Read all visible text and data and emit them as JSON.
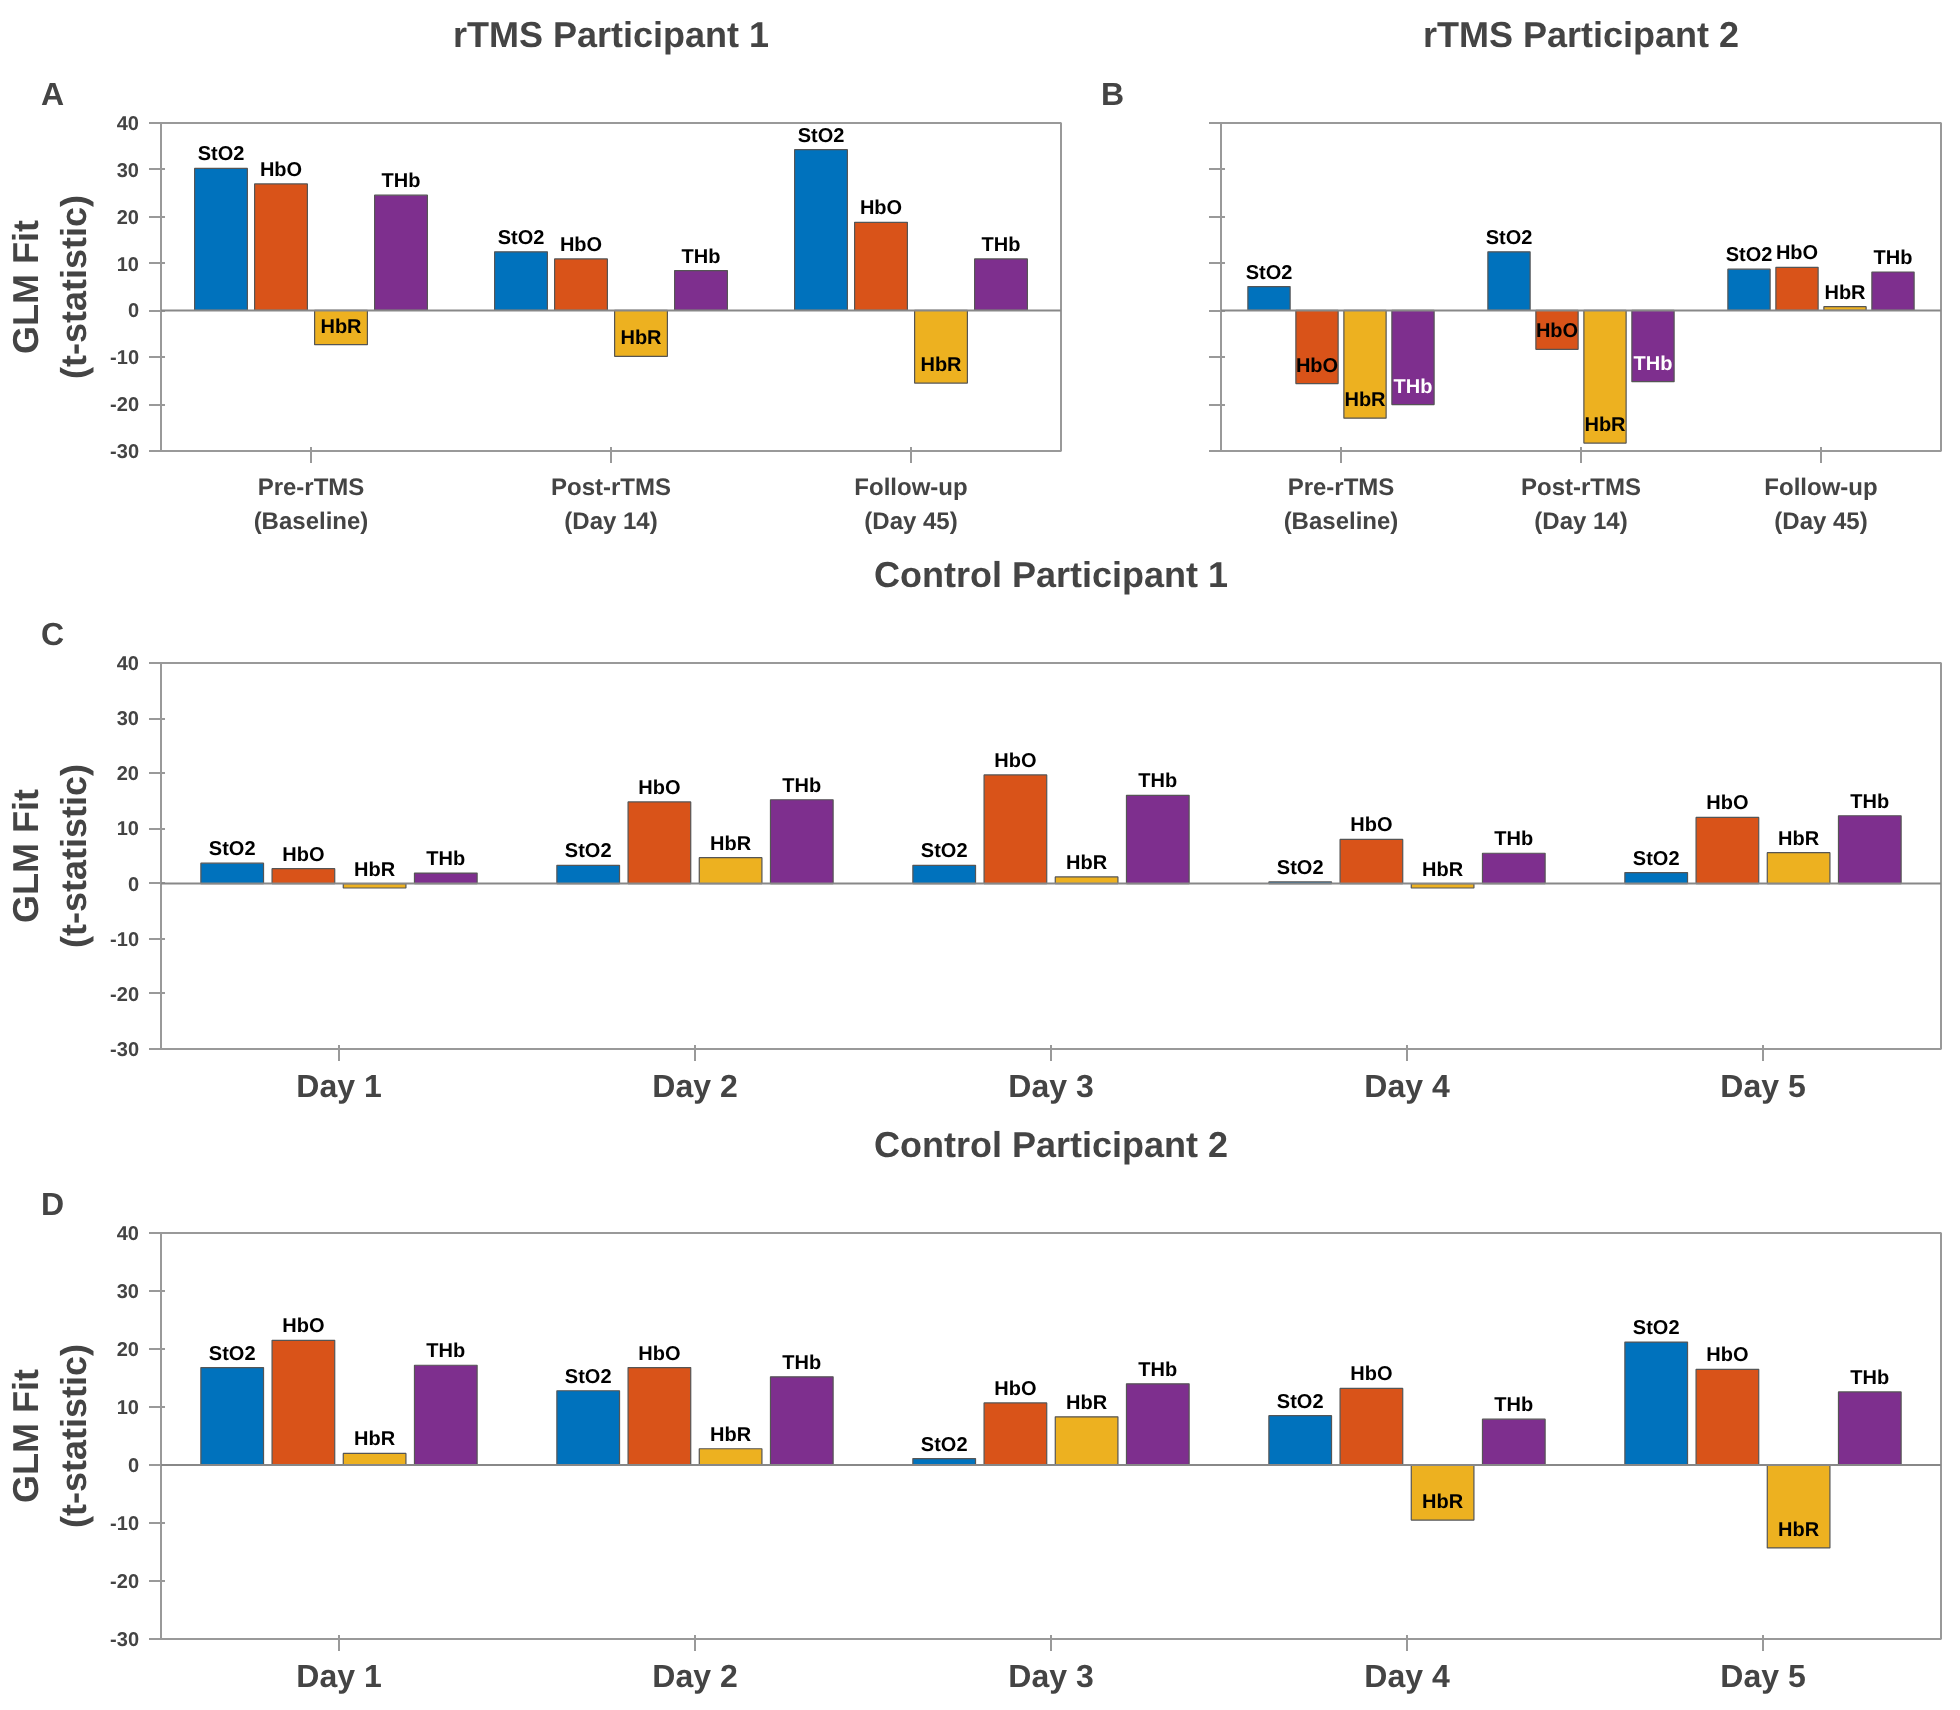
{
  "chart_data": [
    {
      "type": "bar",
      "title": "rTMS Participant 1",
      "ylabel": "GLM Fit\n(t-statistic)",
      "annotations": [
        "A"
      ],
      "categories": [
        "Pre-rTMS\n(Baseline)",
        "Post-rTMS\n(Day 14)",
        "Follow-up\n(Day 45)"
      ],
      "ylim": [
        -30,
        40
      ],
      "yticks": [
        -30,
        -20,
        -10,
        0,
        10,
        20,
        30,
        40
      ],
      "series": [
        {
          "name": "StO2",
          "color": "#0072bd",
          "values": [
            30.3,
            12.5,
            34.3
          ]
        },
        {
          "name": "HbO",
          "color": "#d95319",
          "values": [
            27,
            11,
            18.8
          ]
        },
        {
          "name": "HbR",
          "color": "#edb120",
          "values": [
            -7.3,
            -9.8,
            -15.5
          ]
        },
        {
          "name": "THb",
          "color": "#7e2f8e",
          "values": [
            24.6,
            8.5,
            11
          ]
        }
      ]
    },
    {
      "type": "bar",
      "title": "rTMS Participant 2",
      "annotations": [
        "B"
      ],
      "categories": [
        "Pre-rTMS\n(Baseline)",
        "Post-rTMS\n(Day 14)",
        "Follow-up\n(Day 45)"
      ],
      "ylim": [
        -30,
        40
      ],
      "yticks": [
        -30,
        -20,
        -10,
        0,
        10,
        20,
        30,
        40
      ],
      "tick_labels": "x",
      "series": [
        {
          "name": "StO2",
          "color": "#0072bd",
          "values": [
            5.1,
            12.5,
            8.8
          ]
        },
        {
          "name": "HbO",
          "color": "#d95319",
          "values": [
            -15.6,
            -8.3,
            9.2
          ]
        },
        {
          "name": "HbR",
          "color": "#edb120",
          "values": [
            -23,
            -28.3,
            0.8
          ]
        },
        {
          "name": "THb",
          "color": "#7e2f8e",
          "values": [
            -20.1,
            -15.2,
            8.2
          ]
        }
      ]
    },
    {
      "type": "bar",
      "title": "Control Participant 1",
      "ylabel": "GLM Fit\n(t-statistic)",
      "annotations": [
        "C"
      ],
      "categories": [
        "Day 1",
        "Day 2",
        "Day 3",
        "Day 4",
        "Day 5"
      ],
      "ylim": [
        -30,
        40
      ],
      "yticks": [
        -30,
        -20,
        -10,
        0,
        10,
        20,
        30,
        40
      ],
      "series": [
        {
          "name": "StO2",
          "color": "#0072bd",
          "values": [
            3.7,
            3.3,
            3.3,
            0.3,
            2
          ]
        },
        {
          "name": "HbO",
          "color": "#d95319",
          "values": [
            2.7,
            14.8,
            19.7,
            8,
            12
          ]
        },
        {
          "name": "HbR",
          "color": "#edb120",
          "values": [
            -0.8,
            4.7,
            1.2,
            -0.8,
            5.6
          ]
        },
        {
          "name": "THb",
          "color": "#7e2f8e",
          "values": [
            1.9,
            15.2,
            16,
            5.5,
            12.3
          ]
        }
      ]
    },
    {
      "type": "bar",
      "title": "Control Participant 2",
      "ylabel": "GLM Fit\n(t-statistic)",
      "annotations": [
        "D"
      ],
      "categories": [
        "Day 1",
        "Day 2",
        "Day 3",
        "Day 4",
        "Day 5"
      ],
      "ylim": [
        -30,
        40
      ],
      "yticks": [
        -30,
        -20,
        -10,
        0,
        10,
        20,
        30,
        40
      ],
      "series": [
        {
          "name": "StO2",
          "color": "#0072bd",
          "values": [
            16.8,
            12.8,
            1.1,
            8.5,
            21.2
          ]
        },
        {
          "name": "HbO",
          "color": "#d95319",
          "values": [
            21.5,
            16.8,
            10.7,
            13.2,
            16.5
          ]
        },
        {
          "name": "HbR",
          "color": "#edb120",
          "values": [
            2,
            2.8,
            8.3,
            -9.5,
            -14.3
          ]
        },
        {
          "name": "THb",
          "color": "#7e2f8e",
          "values": [
            17.2,
            15.2,
            14,
            7.9,
            12.6
          ]
        }
      ]
    }
  ]
}
